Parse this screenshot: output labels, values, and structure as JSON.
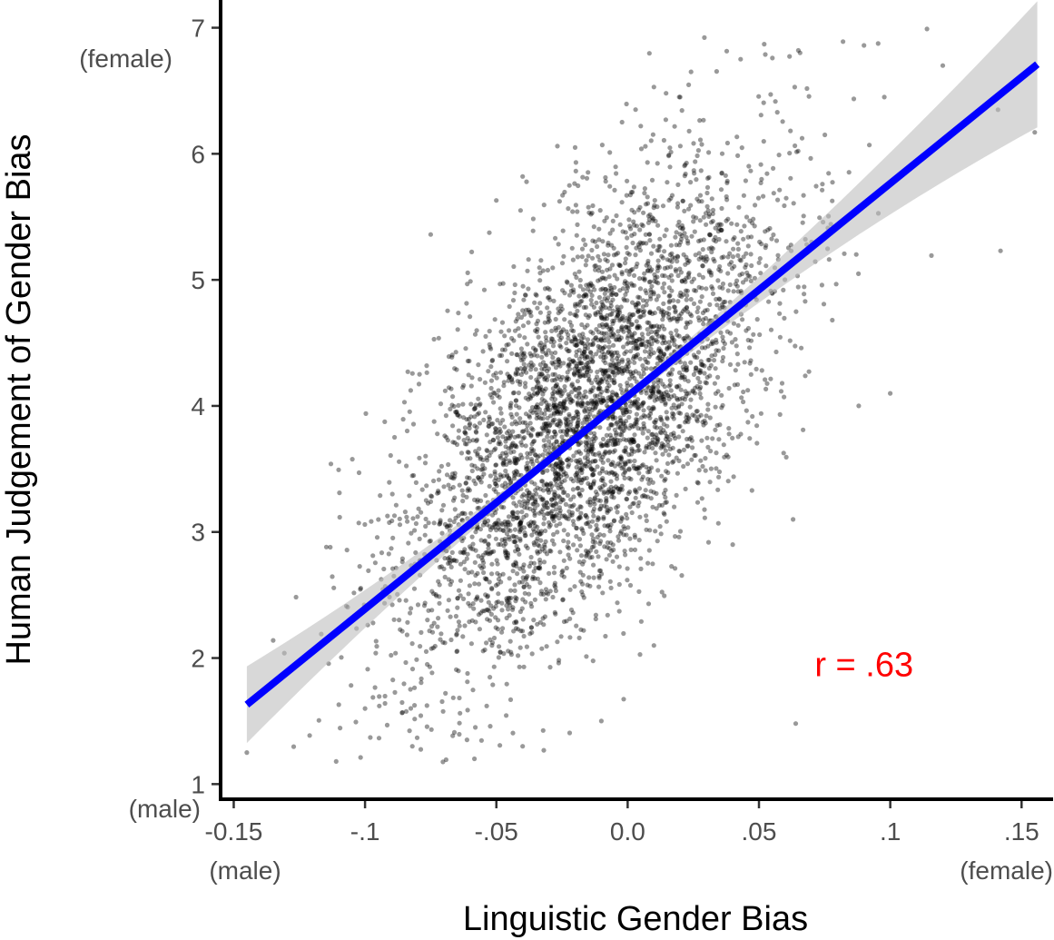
{
  "chart_data": {
    "type": "scatter",
    "title": "",
    "xlabel": "Linguistic Gender Bias",
    "ylabel": "Human Judgement of Gender Bias",
    "xlim": [
      -0.155,
      0.162
    ],
    "ylim": [
      0.88,
      7.22
    ],
    "x_ticks": [
      {
        "value": -0.15,
        "label": "-0.15"
      },
      {
        "value": -0.1,
        "label": "-.1"
      },
      {
        "value": -0.05,
        "label": "-.05"
      },
      {
        "value": 0.0,
        "label": "0.0"
      },
      {
        "value": 0.05,
        "label": ".05"
      },
      {
        "value": 0.1,
        "label": ".1"
      },
      {
        "value": 0.15,
        "label": ".15"
      }
    ],
    "y_ticks": [
      {
        "value": 1,
        "label": "1"
      },
      {
        "value": 2,
        "label": "2"
      },
      {
        "value": 3,
        "label": "3"
      },
      {
        "value": 4,
        "label": "4"
      },
      {
        "value": 5,
        "label": "5"
      },
      {
        "value": 6,
        "label": "6"
      },
      {
        "value": 7,
        "label": "7"
      }
    ],
    "x_end_labels": {
      "low": "(male)",
      "high": "(female)"
    },
    "y_end_labels": {
      "low": "(male)",
      "high": "(female)"
    },
    "grid": false,
    "legend": "none",
    "point_color": "#000000",
    "point_opacity": 0.4,
    "points_summary": {
      "count_approx": 4200,
      "x_mean": -0.015,
      "x_sd": 0.035,
      "y_mean": 3.95,
      "y_sd": 0.95,
      "correlation": 0.63
    },
    "points_sample": [
      [
        -0.145,
        1.25
      ],
      [
        -0.135,
        2.14
      ],
      [
        -0.111,
        1.18
      ],
      [
        -0.113,
        3.54
      ],
      [
        -0.11,
        1.63
      ],
      [
        -0.1,
        1.6
      ],
      [
        -0.098,
        1.37
      ],
      [
        -0.09,
        2.87
      ],
      [
        -0.085,
        4.03
      ],
      [
        -0.082,
        1.3
      ],
      [
        -0.075,
        5.36
      ],
      [
        -0.066,
        1.41
      ],
      [
        -0.05,
        5.63
      ],
      [
        -0.04,
        5.82
      ],
      [
        -0.02,
        6.05
      ],
      [
        0.005,
        6.22
      ],
      [
        0.01,
        6.53
      ],
      [
        0.02,
        6.45
      ],
      [
        0.043,
        6.75
      ],
      [
        0.052,
        6.87
      ],
      [
        0.065,
        6.82
      ],
      [
        0.082,
        6.89
      ],
      [
        0.09,
        6.86
      ],
      [
        0.114,
        6.99
      ],
      [
        0.12,
        6.7
      ],
      [
        0.141,
        6.35
      ],
      [
        0.142,
        5.23
      ],
      [
        0.155,
        6.17
      ],
      [
        0.1,
        4.1
      ],
      [
        0.088,
        4.0
      ],
      [
        0.064,
        1.48
      ],
      [
        0.063,
        3.1
      ],
      [
        0.045,
        4.8
      ],
      [
        0.025,
        5.5
      ],
      [
        -0.01,
        1.5
      ],
      [
        -0.04,
        1.3
      ],
      [
        -0.058,
        1.45
      ],
      [
        0.01,
        2.1
      ],
      [
        0.04,
        2.9
      ],
      [
        0.07,
        5.3
      ]
    ],
    "fit_line": {
      "color": "#0000ff",
      "x": [
        -0.145,
        0.156
      ],
      "y": [
        1.63,
        6.71
      ],
      "ci_color": "#bebebe"
    },
    "annotation": {
      "text": "r = .63",
      "color": "#ff0000",
      "x": 0.09,
      "y": 1.95
    }
  }
}
